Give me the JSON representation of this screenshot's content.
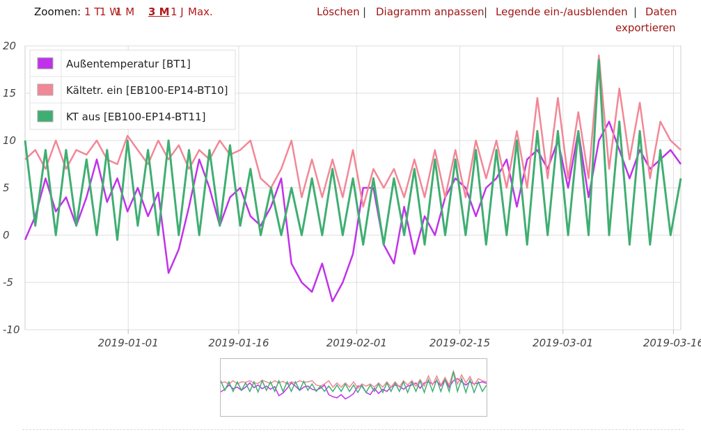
{
  "toolbar": {
    "zoom_label": "Zoomen:",
    "zoom_options": [
      "1 T",
      "1 W",
      "1 M",
      "3 M",
      "1 J",
      "Max."
    ],
    "zoom_active": "3 M",
    "actions": {
      "clear": "Löschen",
      "customize": "Diagramm anpassen",
      "toggle_legend": "Legende ein-/ausblenden",
      "export_line1": "Daten",
      "export_line2": "exportieren"
    }
  },
  "chart_data": {
    "type": "line",
    "ylim": [
      -10,
      20
    ],
    "y_ticks": [
      "20",
      "15",
      "10",
      "5",
      "0",
      "-5",
      "-10"
    ],
    "x_ticks": [
      "2019-01-01",
      "2019-01-16",
      "2019-02-01",
      "2019-02-15",
      "2019-03-01",
      "2019-03-16"
    ],
    "x_range": [
      "2018-12-18",
      "2019-03-17"
    ],
    "grid": true,
    "legend_position": "top-left",
    "series": [
      {
        "name": "Außentemperatur [BT1]",
        "color": "#c032ea",
        "values": [
          -0.5,
          2,
          6,
          2.5,
          4,
          1,
          4,
          8,
          3.5,
          6,
          2.5,
          5,
          2,
          4.5,
          -4,
          -1.5,
          3,
          8,
          5,
          1,
          4,
          5,
          2,
          1,
          3,
          6,
          -3,
          -5,
          -6,
          -3,
          -7,
          -5,
          -2,
          5,
          5,
          -1,
          -3,
          3,
          -2,
          2,
          0,
          4,
          6,
          5,
          2,
          5,
          6,
          8,
          3,
          8,
          9,
          7,
          10,
          5,
          11,
          4,
          10,
          12,
          9,
          6,
          9,
          7,
          8,
          9,
          7.5
        ]
      },
      {
        "name": "Kältetr. ein [EB100-EP14-BT10]",
        "color": "#f28796",
        "values": [
          8,
          9,
          7,
          10,
          7,
          9,
          8.5,
          10,
          8,
          7.5,
          10.5,
          9,
          7.5,
          10,
          8,
          9.5,
          7,
          9,
          8,
          10,
          8.5,
          9,
          10,
          6,
          5,
          7,
          10,
          4,
          8,
          4,
          8,
          4,
          9,
          3,
          7,
          5,
          7,
          4,
          8,
          4,
          9,
          4,
          9,
          4,
          10,
          6,
          10,
          5,
          11,
          5,
          14.5,
          6,
          14.5,
          6,
          13,
          6,
          19,
          7,
          15.5,
          8,
          14,
          6,
          12,
          10,
          9
        ]
      },
      {
        "name": "KT aus [EB100-EP14-BT11]",
        "color": "#3fae71",
        "values": [
          10,
          1,
          9,
          0,
          9,
          1,
          8,
          0,
          9,
          -0.5,
          10,
          1,
          9,
          0,
          10,
          0,
          9,
          0,
          9,
          1,
          9.5,
          1,
          7,
          0,
          5,
          0,
          5,
          0,
          6,
          0,
          7,
          0,
          6,
          -1,
          6,
          -1,
          6,
          0,
          7,
          -1,
          8,
          0,
          8,
          0,
          9,
          -1,
          9,
          0,
          10,
          -1,
          11,
          0,
          11,
          0,
          11,
          0,
          18.5,
          0,
          12,
          -1,
          11,
          -1,
          9,
          0,
          6
        ]
      }
    ]
  }
}
